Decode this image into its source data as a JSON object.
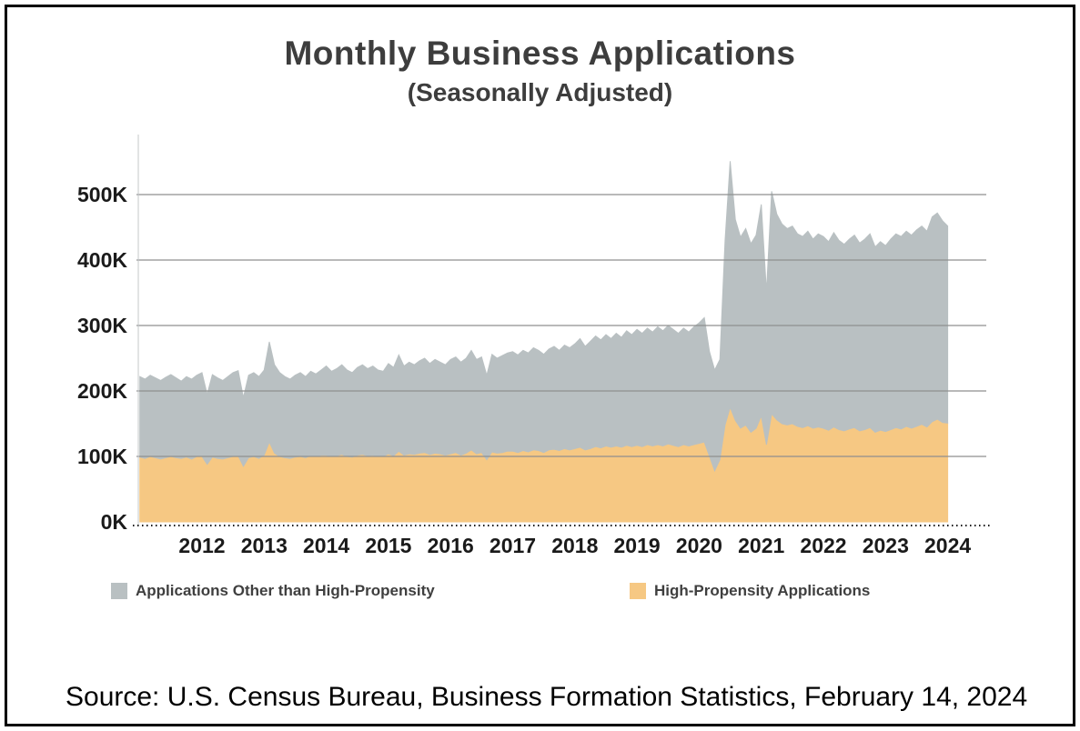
{
  "title": "Monthly Business Applications",
  "subtitle": "(Seasonally Adjusted)",
  "source": "Source: U.S. Census Bureau, Business Formation Statistics, February 14, 2024",
  "colors": {
    "other_series": "#b9c0c2",
    "high_propensity_series": "#f6c883",
    "gridline": "#8f8f8f",
    "axis_text": "#1a1a1a"
  },
  "legend": [
    {
      "label": "Applications Other than High-Propensity",
      "color": "#b9c0c2"
    },
    {
      "label": "High-Propensity Applications",
      "color": "#f6c883"
    }
  ],
  "chart_data": {
    "type": "area",
    "stacked": true,
    "title": "Monthly Business Applications",
    "subtitle": "(Seasonally Adjusted)",
    "xlabel": "",
    "ylabel": "",
    "units": "thousands of applications",
    "x_unit": "month",
    "x_start": 2011.0,
    "x_end": 2024.0,
    "x_ticks": [
      2012,
      2013,
      2014,
      2015,
      2016,
      2017,
      2018,
      2019,
      2020,
      2021,
      2022,
      2023,
      2024
    ],
    "ylim": [
      0,
      600
    ],
    "y_ticks": [
      {
        "label": "0K",
        "value": 0
      },
      {
        "label": "100K",
        "value": 100
      },
      {
        "label": "200K",
        "value": 200
      },
      {
        "label": "300K",
        "value": 300
      },
      {
        "label": "400K",
        "value": 400
      },
      {
        "label": "500K",
        "value": 500
      }
    ],
    "grid": true,
    "legend_position": "bottom",
    "series": [
      {
        "name": "High-Propensity Applications",
        "color": "#f6c883",
        "values": [
          99,
          97,
          100,
          98,
          96,
          98,
          100,
          98,
          97,
          99,
          96,
          100,
          100,
          88,
          99,
          97,
          96,
          98,
          100,
          101,
          85,
          98,
          100,
          97,
          102,
          122,
          105,
          100,
          98,
          97,
          99,
          100,
          98,
          101,
          100,
          102,
          102,
          100,
          101,
          103,
          100,
          99,
          102,
          103,
          101,
          102,
          100,
          100,
          104,
          101,
          108,
          102,
          104,
          103,
          105,
          106,
          103,
          105,
          104,
          102,
          104,
          106,
          102,
          105,
          110,
          104,
          106,
          95,
          107,
          105,
          106,
          108,
          108,
          106,
          109,
          107,
          110,
          109,
          106,
          110,
          111,
          109,
          112,
          110,
          112,
          114,
          110,
          112,
          115,
          113,
          116,
          114,
          116,
          114,
          117,
          115,
          117,
          115,
          118,
          116,
          118,
          116,
          119,
          117,
          115,
          118,
          116,
          118,
          120,
          122,
          100,
          78,
          95,
          148,
          175,
          155,
          143,
          148,
          137,
          143,
          162,
          118,
          165,
          156,
          150,
          148,
          150,
          146,
          144,
          147,
          143,
          145,
          143,
          140,
          145,
          141,
          139,
          142,
          144,
          139,
          141,
          144,
          137,
          140,
          138,
          141,
          144,
          142,
          146,
          143,
          146,
          149,
          145,
          153,
          157,
          152,
          151
        ]
      },
      {
        "name": "Applications Other than High-Propensity",
        "color": "#b9c0c2",
        "values": [
          123,
          121,
          124,
          122,
          120,
          123,
          125,
          122,
          118,
          123,
          122,
          124,
          128,
          107,
          126,
          123,
          120,
          124,
          128,
          130,
          105,
          126,
          128,
          125,
          130,
          153,
          135,
          128,
          124,
          121,
          125,
          128,
          124,
          129,
          126,
          130,
          136,
          130,
          133,
          137,
          132,
          129,
          134,
          137,
          133,
          136,
          132,
          130,
          138,
          135,
          147,
          136,
          140,
          137,
          141,
          144,
          139,
          143,
          140,
          138,
          144,
          146,
          142,
          145,
          152,
          144,
          146,
          129,
          149,
          145,
          148,
          150,
          152,
          149,
          153,
          151,
          156,
          153,
          150,
          154,
          157,
          153,
          158,
          156,
          160,
          166,
          158,
          164,
          169,
          165,
          170,
          166,
          172,
          168,
          175,
          171,
          177,
          173,
          178,
          174,
          180,
          176,
          181,
          177,
          173,
          178,
          174,
          180,
          184,
          190,
          160,
          154,
          153,
          282,
          376,
          307,
          292,
          300,
          288,
          295,
          323,
          234,
          340,
          314,
          305,
          300,
          302,
          294,
          292,
          297,
          289,
          295,
          293,
          288,
          297,
          289,
          285,
          290,
          294,
          287,
          291,
          296,
          283,
          288,
          284,
          291,
          296,
          294,
          298,
          295,
          300,
          303,
          299,
          313,
          315,
          308,
          301
        ]
      }
    ]
  }
}
